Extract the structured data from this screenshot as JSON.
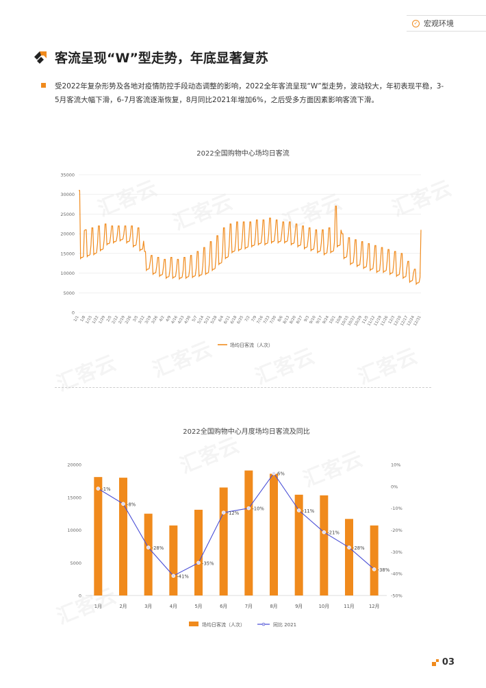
{
  "header": {
    "section_label": "宏观环境"
  },
  "title": "客流呈现“W”型走势，年底显著复苏",
  "paragraph": "受2022年复杂形势及各地对疫情防控手段动态调整的影响，2022全年客流呈现“W”型走势，波动较大，年初表现平稳，3-5月客流大幅下滑，6-7月客流逐渐恢复，8月同比2021年增加6%，之后受多方面因素影响客流下滑。",
  "page_number": "03",
  "watermark_text": "汇客云",
  "colors": {
    "accent": "#f08a1c",
    "line_blue": "#4a4fd6",
    "bar_orange": "#f08a1c"
  },
  "chart_data": [
    {
      "type": "line",
      "title": "2022全国购物中心场均日客流",
      "legend": [
        "场均日客流（人次）"
      ],
      "ylim": [
        0,
        35000
      ],
      "yticks": [
        0,
        5000,
        10000,
        15000,
        20000,
        25000,
        30000,
        35000
      ],
      "xtick_labels": [
        "1/1",
        "1/8",
        "1/15",
        "1/22",
        "1/29",
        "2/5",
        "2/12",
        "2/19",
        "2/26",
        "3/5",
        "3/12",
        "3/19",
        "3/26",
        "4/2",
        "4/9",
        "4/16",
        "4/23",
        "4/30",
        "5/7",
        "5/14",
        "5/21",
        "5/28",
        "6/4",
        "6/11",
        "6/18",
        "6/25",
        "7/2",
        "7/9",
        "7/16",
        "7/23",
        "7/30",
        "8/6",
        "8/13",
        "8/20",
        "8/27",
        "9/3",
        "9/10",
        "9/17",
        "9/24",
        "10/1",
        "10/8",
        "10/15",
        "10/22",
        "10/29",
        "11/5",
        "11/12",
        "11/19",
        "11/26",
        "12/3",
        "12/10",
        "12/17",
        "12/24",
        "12/31"
      ],
      "weekly_pattern_note": "",
      "weekly": {
        "weekday": [
          14000,
          14500,
          15000,
          16000,
          17500,
          18000,
          18500,
          18000,
          17000,
          16000,
          11000,
          10000,
          9500,
          9000,
          9000,
          8800,
          9000,
          9200,
          9500,
          10000,
          11000,
          12500,
          14000,
          15500,
          16000,
          16500,
          17000,
          17500,
          17500,
          18000,
          18000,
          18000,
          17500,
          17000,
          16500,
          16000,
          15500,
          15000,
          15500,
          17000,
          14000,
          12500,
          12000,
          11500,
          11000,
          10500,
          10500,
          10000,
          9500,
          9000,
          8000,
          7500,
          9000
        ],
        "weekend": [
          31000,
          21000,
          21500,
          22000,
          22500,
          22000,
          22000,
          22000,
          22000,
          21500,
          15500,
          14500,
          14000,
          13500,
          14000,
          13500,
          14000,
          14500,
          15500,
          16500,
          18000,
          19500,
          21500,
          22500,
          23000,
          23000,
          23000,
          23500,
          23500,
          24000,
          23500,
          23000,
          23000,
          22500,
          22000,
          21500,
          21000,
          21000,
          21500,
          27000,
          20000,
          19000,
          18500,
          18000,
          17500,
          17000,
          16500,
          16000,
          15500,
          15000,
          13000,
          11000,
          21000
        ]
      }
    },
    {
      "type": "bar",
      "title": "2022全国购物中心月度场均日客流及同比",
      "categories": [
        "1月",
        "2月",
        "3月",
        "4月",
        "5月",
        "6月",
        "7月",
        "8月",
        "9月",
        "10月",
        "11月",
        "12月"
      ],
      "series": [
        {
          "name": "场均日客流（人次）",
          "type": "bar",
          "axis": "left",
          "values": [
            18100,
            18000,
            12500,
            10700,
            13100,
            16500,
            19100,
            18600,
            15400,
            15300,
            11700,
            10700
          ]
        },
        {
          "name": "同比 2021",
          "type": "line",
          "axis": "right",
          "values": [
            -1,
            -8,
            -28,
            -41,
            -35,
            -12,
            -10,
            6,
            -11,
            -21,
            -28,
            -38
          ],
          "labels": [
            "-1%",
            "-8%",
            "-28%",
            "-41%",
            "-35%",
            "-12%",
            "-10%",
            "6%",
            "-11%",
            "-21%",
            "-28%",
            "-38%"
          ]
        }
      ],
      "ylim_left": [
        0,
        20000
      ],
      "yticks_left": [
        "0",
        "5000",
        "10000",
        "15000",
        "20000"
      ],
      "ylim_right": [
        -50,
        10
      ],
      "yticks_right": [
        "-50%",
        "-40%",
        "-30%",
        "-20%",
        "-10%",
        "0%",
        "10%"
      ]
    }
  ]
}
